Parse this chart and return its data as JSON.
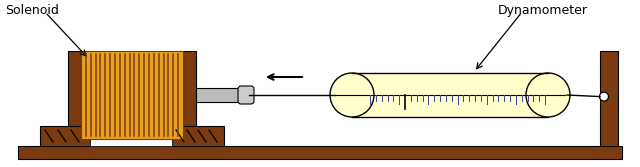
{
  "bg_color": "#ffffff",
  "solenoid_label": "Solenoid",
  "dynamometer_label": "Dynamometer",
  "colors": {
    "dark_brown": "#7B3B10",
    "orange_coil": "#E8A020",
    "yellow_dynamo": "#FFFFCC",
    "gray_rod": "#BBBBBB",
    "black": "#000000",
    "white": "#ffffff",
    "tick_color": "#4444AA",
    "light_gray": "#CCCCCC"
  },
  "figsize": [
    6.4,
    1.67
  ],
  "dpi": 100
}
